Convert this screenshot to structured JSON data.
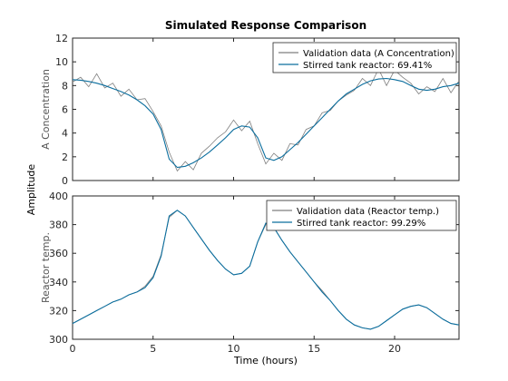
{
  "chart_data": {
    "type": "line",
    "title": "Simulated Response Comparison",
    "xlabel": "Time (hours)",
    "common_ylabel": "Amplitude",
    "xlim": [
      0,
      24
    ],
    "xticks": [
      0,
      5,
      10,
      15,
      20
    ],
    "colors": {
      "measured": "#7f7f7f",
      "simulated": "#0b6e9e"
    },
    "panels": [
      {
        "ylabel": "A Concentration",
        "ylim": [
          0,
          12
        ],
        "yticks": [
          0,
          2,
          4,
          6,
          8,
          10,
          12
        ],
        "legend_position": "top-right",
        "series": [
          {
            "name": "Validation data (A Concentration)",
            "role": "measured",
            "x": [
              0,
              0.5,
              1,
              1.5,
              2,
              2.5,
              3,
              3.5,
              4,
              4.5,
              5,
              5.5,
              6,
              6.5,
              7,
              7.5,
              8,
              8.5,
              9,
              9.5,
              10,
              10.5,
              11,
              11.5,
              12,
              12.5,
              13,
              13.5,
              14,
              14.5,
              15,
              15.5,
              16,
              16.5,
              17,
              17.5,
              18,
              18.5,
              19,
              19.5,
              20,
              20.5,
              21,
              21.5,
              22,
              22.5,
              23,
              23.5,
              24
            ],
            "y": [
              8.3,
              8.7,
              7.9,
              9.0,
              7.8,
              8.2,
              7.1,
              7.7,
              6.8,
              6.9,
              5.8,
              4.6,
              2.4,
              0.8,
              1.6,
              0.9,
              2.3,
              2.9,
              3.6,
              4.1,
              5.1,
              4.2,
              5.0,
              3.1,
              1.4,
              2.3,
              1.7,
              3.1,
              3.0,
              4.3,
              4.6,
              5.7,
              5.9,
              6.7,
              7.2,
              7.6,
              8.6,
              8.0,
              9.4,
              8.0,
              9.3,
              8.7,
              8.2,
              7.3,
              7.9,
              7.5,
              8.6,
              7.4,
              8.4
            ]
          },
          {
            "name": "Stirred tank reactor: 69.41%",
            "role": "simulated",
            "x": [
              0,
              0.5,
              1,
              1.5,
              2,
              2.5,
              3,
              3.5,
              4,
              4.5,
              5,
              5.5,
              6,
              6.5,
              7,
              7.5,
              8,
              8.5,
              9,
              9.5,
              10,
              10.5,
              11,
              11.5,
              12,
              12.5,
              13,
              13.5,
              14,
              14.5,
              15,
              15.5,
              16,
              16.5,
              17,
              17.5,
              18,
              18.5,
              19,
              19.5,
              20,
              20.5,
              21,
              21.5,
              22,
              22.5,
              23,
              23.5,
              24
            ],
            "y": [
              8.5,
              8.45,
              8.35,
              8.2,
              8.0,
              7.75,
              7.5,
              7.2,
              6.8,
              6.3,
              5.6,
              4.3,
              1.8,
              1.1,
              1.2,
              1.5,
              1.9,
              2.4,
              3.0,
              3.6,
              4.3,
              4.6,
              4.5,
              3.6,
              1.9,
              1.7,
              2.0,
              2.6,
              3.2,
              3.9,
              4.6,
              5.3,
              6.0,
              6.7,
              7.3,
              7.7,
              8.1,
              8.4,
              8.55,
              8.6,
              8.5,
              8.35,
              8.0,
              7.7,
              7.6,
              7.7,
              7.9,
              8.0,
              8.2
            ]
          }
        ]
      },
      {
        "ylabel": "Reactor temp.",
        "ylim": [
          300,
          400
        ],
        "yticks": [
          300,
          320,
          340,
          360,
          380,
          400
        ],
        "legend_position": "top-right",
        "series": [
          {
            "name": "Validation data (Reactor temp.)",
            "role": "measured",
            "x": [
              0,
              0.5,
              1,
              1.5,
              2,
              2.5,
              3,
              3.5,
              4,
              4.5,
              5,
              5.5,
              6,
              6.5,
              7,
              7.5,
              8,
              8.5,
              9,
              9.5,
              10,
              10.5,
              11,
              11.5,
              12,
              12.5,
              13,
              13.5,
              14,
              14.5,
              15,
              15.5,
              16,
              16.5,
              17,
              17.5,
              18,
              18.5,
              19,
              19.5,
              20,
              20.5,
              21,
              21.5,
              22,
              22.5,
              23,
              23.5,
              24
            ],
            "y": [
              311,
              314,
              317,
              320,
              323,
              326,
              328,
              331,
              333,
              337,
              344,
              359,
              385,
              390,
              386,
              378,
              370,
              362,
              355,
              349,
              345,
              346,
              351,
              368,
              380,
              378,
              369,
              361,
              354,
              347,
              340,
              334,
              327,
              320,
              314,
              310,
              308,
              307,
              309,
              313,
              317,
              321,
              323,
              324,
              322,
              318,
              314,
              311,
              310
            ]
          },
          {
            "name": "Stirred tank reactor: 99.29%",
            "role": "simulated",
            "x": [
              0,
              0.5,
              1,
              1.5,
              2,
              2.5,
              3,
              3.5,
              4,
              4.5,
              5,
              5.5,
              6,
              6.5,
              7,
              7.5,
              8,
              8.5,
              9,
              9.5,
              10,
              10.5,
              11,
              11.5,
              12,
              12.5,
              13,
              13.5,
              14,
              14.5,
              15,
              15.5,
              16,
              16.5,
              17,
              17.5,
              18,
              18.5,
              19,
              19.5,
              20,
              20.5,
              21,
              21.5,
              22,
              22.5,
              23,
              23.5,
              24
            ],
            "y": [
              311,
              314,
              317,
              320,
              323,
              326,
              328,
              331,
              333,
              336,
              343,
              358,
              386,
              390,
              386,
              378,
              370,
              362,
              355,
              349,
              345,
              346,
              351,
              368,
              381,
              378,
              369,
              361,
              354,
              347,
              340,
              333,
              327,
              320,
              314,
              310,
              308,
              307,
              309,
              313,
              317,
              321,
              323,
              324,
              322,
              318,
              314,
              311,
              310
            ]
          }
        ]
      }
    ]
  }
}
